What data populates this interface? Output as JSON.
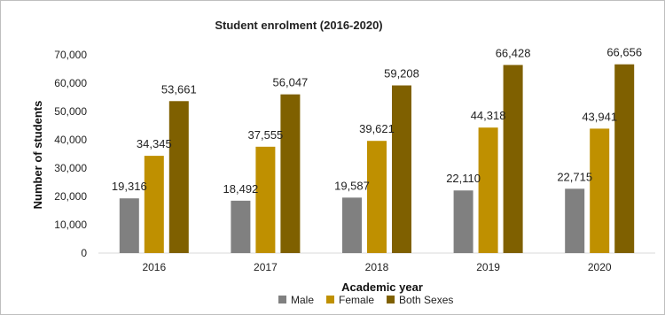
{
  "chart_data": {
    "type": "bar",
    "title": "Student enrolment (2016-2020)",
    "xlabel": "Academic year",
    "ylabel": "Number of students",
    "ylim": [
      0,
      70000
    ],
    "yticks": [
      "0",
      "10,000",
      "20,000",
      "30,000",
      "40,000",
      "50,000",
      "60,000",
      "70,000"
    ],
    "categories": [
      "2016",
      "2017",
      "2018",
      "2019",
      "2020"
    ],
    "series": [
      {
        "name": "Male",
        "color": "#808080",
        "values": [
          19316,
          18492,
          19587,
          22110,
          22715
        ],
        "labels": [
          "19,316",
          "18,492",
          "19,587",
          "22,110",
          "22,715"
        ]
      },
      {
        "name": "Female",
        "color": "#BF9000",
        "values": [
          34345,
          37555,
          39621,
          44318,
          43941
        ],
        "labels": [
          "34,345",
          "37,555",
          "39,621",
          "44,318",
          "43,941"
        ]
      },
      {
        "name": "Both Sexes",
        "color": "#7F6000",
        "values": [
          53661,
          56047,
          59208,
          66428,
          66656
        ],
        "labels": [
          "53,661",
          "56,047",
          "59,208",
          "66,428",
          "66,656"
        ]
      }
    ],
    "grid": false,
    "legend": "bottom"
  }
}
